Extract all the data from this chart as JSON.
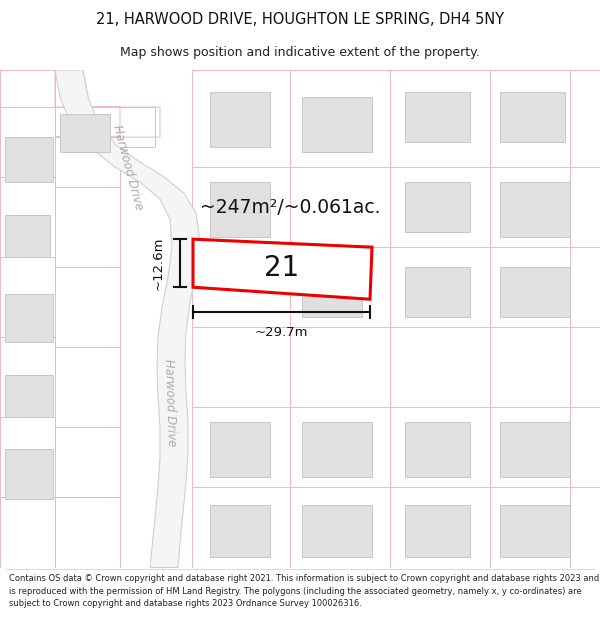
{
  "title_line1": "21, HARWOOD DRIVE, HOUGHTON LE SPRING, DH4 5NY",
  "title_line2": "Map shows position and indicative extent of the property.",
  "area_text": "~247m²/~0.061ac.",
  "number_label": "21",
  "dim_width": "~29.7m",
  "dim_height": "~12.6m",
  "road_label_top": "Harwood Drive",
  "road_label_bottom": "Harwood Drive",
  "background_color": "#ffffff",
  "map_bg_color": "#ffffff",
  "road_fill": "#f2f2f2",
  "road_edge": "#c8c8c8",
  "building_fill": "#e0e0e0",
  "building_edge": "#c8c8c8",
  "plot_border_color": "#ff0000",
  "boundary_color": "#f0b8b8",
  "footer_text": "Contains OS data © Crown copyright and database right 2021. This information is subject to Crown copyright and database rights 2023 and is reproduced with the permission of HM Land Registry. The polygons (including the associated geometry, namely x, y co-ordinates) are subject to Crown copyright and database rights 2023 Ordnance Survey 100026316."
}
